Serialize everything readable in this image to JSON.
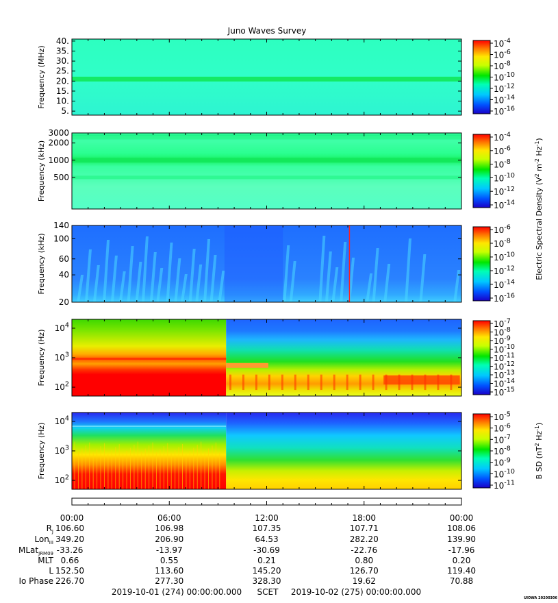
{
  "title": "Juno Waves Survey",
  "chart_data": [
    {
      "type": "heatmap",
      "ylabel": "Frequency (MHz)",
      "yscale": "linear",
      "yticks": [
        "40.",
        "35.",
        "30.",
        "25.",
        "20.",
        "15.",
        "10.",
        "5."
      ],
      "ytick_values": [
        40,
        35,
        30,
        25,
        20,
        15,
        10,
        5
      ],
      "ylim": [
        3,
        41
      ],
      "bands": [
        {
          "value": 21,
          "level": "high"
        }
      ],
      "colorbar": {
        "ticks": [
          "10^-4",
          "10^-6",
          "10^-8",
          "10^-10",
          "10^-12",
          "10^-14",
          "10^-16"
        ],
        "label": ""
      },
      "background": "#33ffcc"
    },
    {
      "type": "heatmap",
      "ylabel": "Frequency (kHz)",
      "yscale": "log",
      "yticks": [
        "3000",
        "2000",
        "1000",
        "500"
      ],
      "ytick_values": [
        3000,
        2000,
        1000,
        500
      ],
      "ylim": [
        140,
        3000
      ],
      "bands": [
        {
          "value": 2500,
          "level": "mid"
        },
        {
          "value": 1000,
          "level": "high"
        },
        {
          "value": 500,
          "level": "mid"
        }
      ],
      "colorbar": {
        "ticks": [
          "10^-4",
          "10^-6",
          "10^-8",
          "10^-10",
          "10^-12",
          "10^-14"
        ],
        "label": ""
      },
      "background": "#33ffbb"
    },
    {
      "type": "heatmap",
      "ylabel": "Frequency (kHz)",
      "yscale": "log",
      "yticks": [
        "140",
        "100",
        "60",
        "40",
        "20"
      ],
      "ytick_values": [
        140,
        100,
        60,
        40,
        20
      ],
      "ylim": [
        20,
        140
      ],
      "colorbar": {
        "ticks": [
          "10^-6",
          "10^-8",
          "10^-10",
          "10^-12",
          "10^-14",
          "10^-16"
        ],
        "label": "Electric Spectral Density (V^2 m^-2 Hz^-1)"
      },
      "background": "#1e78ff"
    },
    {
      "type": "heatmap",
      "ylabel": "Frequency (Hz)",
      "yscale": "log",
      "yticks": [
        "10^4",
        "10^3",
        "10^2"
      ],
      "ytick_values": [
        10000,
        1000,
        100
      ],
      "ylim": [
        50,
        20000
      ],
      "colorbar": {
        "ticks": [
          "10^-7",
          "10^-8",
          "10^-9",
          "10^-10",
          "10^-11",
          "10^-12",
          "10^-13",
          "10^-14",
          "10^-15"
        ],
        "label": ""
      },
      "background": "#1e64ff"
    },
    {
      "type": "heatmap",
      "ylabel": "Frequency (Hz)",
      "yscale": "log",
      "yticks": [
        "10^4",
        "10^3",
        "10^2"
      ],
      "ytick_values": [
        10000,
        1000,
        100
      ],
      "ylim": [
        50,
        20000
      ],
      "colorbar": {
        "ticks": [
          "10^-5",
          "10^-6",
          "10^-7",
          "10^-8",
          "10^-9",
          "10^-10",
          "10^-11"
        ],
        "label": "B SD (nT^2 Hz^-1)"
      },
      "background": "#1e50ff"
    }
  ],
  "time_axis": {
    "ticks": [
      "00:00",
      "06:00",
      "12:00",
      "18:00",
      "00:00"
    ],
    "hours": [
      0,
      6,
      12,
      18,
      24
    ]
  },
  "ephemeris": {
    "rows": [
      {
        "label": "R_J",
        "values": [
          "106.60",
          "106.98",
          "107.35",
          "107.71",
          "108.06"
        ]
      },
      {
        "label": "Lon_III",
        "values": [
          "349.20",
          "206.90",
          "64.53",
          "282.20",
          "139.90"
        ]
      },
      {
        "label": "MLat_JRM09",
        "values": [
          "-33.26",
          "-13.97",
          "-30.69",
          "-22.76",
          "-17.96"
        ]
      },
      {
        "label": "MLT",
        "values": [
          "0.66",
          "0.55",
          "0.21",
          "0.80",
          "0.20"
        ]
      },
      {
        "label": "L",
        "values": [
          "152.50",
          "113.60",
          "145.20",
          "126.70",
          "119.40"
        ]
      },
      {
        "label": "Io Phase",
        "values": [
          "226.70",
          "277.30",
          "328.30",
          "19.62",
          "70.88"
        ]
      }
    ]
  },
  "footer": {
    "start": "2019-10-01 (274) 00:00:00.000",
    "scet": "SCET",
    "end": "2019-10-02 (275) 00:00:00.000"
  },
  "watermark": "UIOWA 20200306"
}
